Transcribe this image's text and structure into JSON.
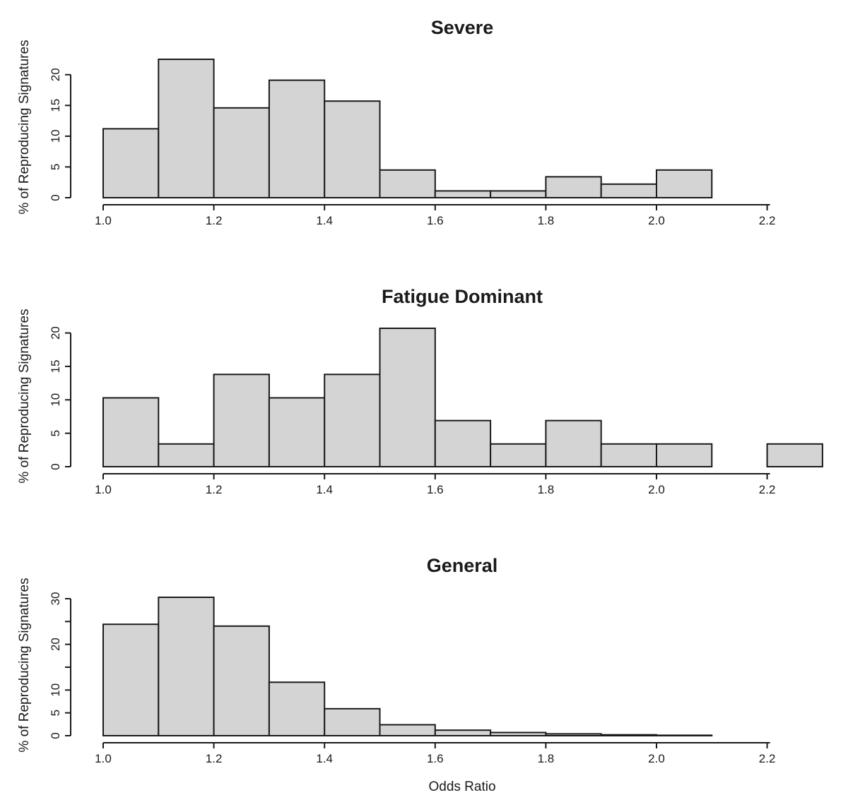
{
  "figure": {
    "background": "#ffffff",
    "bar_fill": "#d4d4d4",
    "bar_stroke": "#1a1a1a",
    "axis_color": "#1a1a1a",
    "text_color": "#1a1a1a"
  },
  "chart_data": [
    {
      "type": "bar",
      "variant": "histogram",
      "title": "Severe",
      "xlabel": "",
      "ylabel": "% of Reproducing Signatures",
      "bin_start": 1.0,
      "bin_width": 0.1,
      "values": [
        11.2,
        22.5,
        14.6,
        19.1,
        15.7,
        4.5,
        1.1,
        1.1,
        3.4,
        2.2,
        4.5
      ],
      "x_ticks": [
        1.0,
        1.2,
        1.4,
        1.6,
        1.8,
        2.0,
        2.2
      ],
      "x_tick_labels": [
        "1.0",
        "1.2",
        "1.4",
        "1.6",
        "1.8",
        "2.0",
        "2.2"
      ],
      "y_ticks": [
        0,
        5,
        10,
        15,
        20
      ],
      "y_tick_labels": [
        "0",
        "5",
        "10",
        "15",
        "20"
      ],
      "xlim": [
        1.0,
        2.2
      ],
      "ylim": [
        0,
        22.5
      ],
      "grid": false,
      "legend": null
    },
    {
      "type": "bar",
      "variant": "histogram",
      "title": "Fatigue Dominant",
      "xlabel": "",
      "ylabel": "% of Reproducing Signatures",
      "bin_start": 1.0,
      "bin_width": 0.1,
      "values": [
        10.3,
        3.4,
        13.8,
        10.3,
        13.8,
        20.7,
        6.9,
        3.4,
        6.9,
        3.4,
        3.4,
        0,
        3.4
      ],
      "x_ticks": [
        1.0,
        1.2,
        1.4,
        1.6,
        1.8,
        2.0,
        2.2
      ],
      "x_tick_labels": [
        "1.0",
        "1.2",
        "1.4",
        "1.6",
        "1.8",
        "2.0",
        "2.2"
      ],
      "y_ticks": [
        0,
        5,
        10,
        15,
        20
      ],
      "y_tick_labels": [
        "0",
        "5",
        "10",
        "15",
        "20"
      ],
      "xlim": [
        1.0,
        2.3
      ],
      "ylim": [
        0,
        20.7
      ],
      "grid": false,
      "legend": null
    },
    {
      "type": "bar",
      "variant": "histogram",
      "title": "General",
      "xlabel": "Odds Ratio",
      "ylabel": "% of Reproducing Signatures",
      "bin_start": 1.0,
      "bin_width": 0.1,
      "values": [
        24.4,
        30.3,
        24.0,
        11.7,
        5.9,
        2.4,
        1.2,
        0.7,
        0.4,
        0.2,
        0.1
      ],
      "x_ticks": [
        1.0,
        1.2,
        1.4,
        1.6,
        1.8,
        2.0,
        2.2
      ],
      "x_tick_labels": [
        "1.0",
        "1.2",
        "1.4",
        "1.6",
        "1.8",
        "2.0",
        "2.2"
      ],
      "y_ticks": [
        0,
        5,
        10,
        15,
        20,
        25,
        30
      ],
      "y_tick_labels": [
        "0",
        "5",
        "10",
        "",
        "20",
        "",
        "30"
      ],
      "xlim": [
        1.0,
        2.2
      ],
      "ylim": [
        0,
        30.3
      ],
      "grid": false,
      "legend": null
    }
  ]
}
